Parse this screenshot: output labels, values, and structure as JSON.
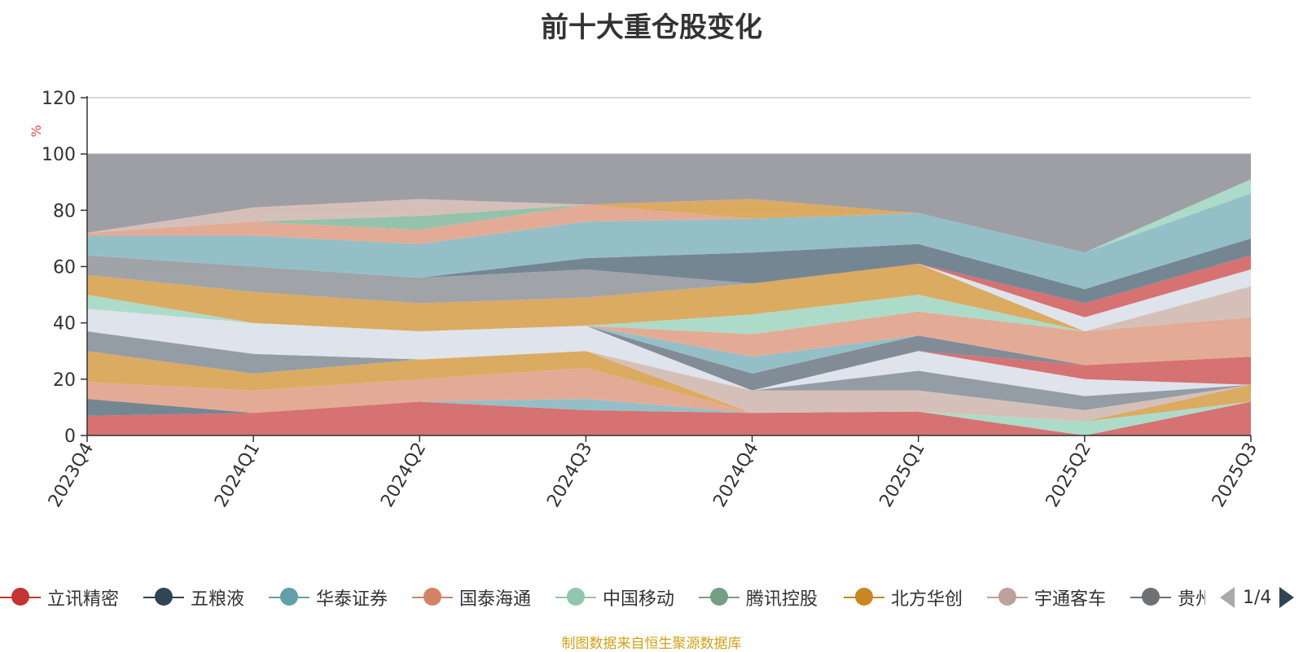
{
  "chart_data": {
    "type": "area",
    "title": "前十大重仓股变化",
    "ylabel": "%",
    "ylim": [
      0,
      120
    ],
    "yticks": [
      0,
      20,
      40,
      60,
      80,
      100,
      120
    ],
    "categories": [
      "2023Q4",
      "2024Q1",
      "2024Q2",
      "2024Q3",
      "2024Q4",
      "2025Q1",
      "2025Q2",
      "2025Q3"
    ],
    "grid": true,
    "legend_position": "bottom",
    "legend_page": "1/4",
    "source_note": "制图数据来自恒生聚源数据库",
    "bands": [
      {
        "color": "#d46a6a",
        "lower": [
          0,
          0,
          0,
          0,
          0,
          0,
          0,
          0
        ],
        "upper": [
          7,
          8,
          12,
          9,
          8,
          8.5,
          0,
          12
        ]
      },
      {
        "color": "#6e7f8d",
        "lower": [
          7,
          8,
          12,
          9,
          8,
          8.5,
          0,
          12
        ],
        "upper": [
          13,
          8,
          12,
          9,
          8,
          8.5,
          0,
          12
        ]
      },
      {
        "color": "#8fbcc4",
        "lower": [
          13,
          8,
          12,
          9,
          8,
          8.5,
          0,
          12
        ],
        "upper": [
          13,
          8,
          12,
          13,
          8,
          8.5,
          0,
          12
        ]
      },
      {
        "color": "#a9d9c6",
        "lower": [
          13,
          8,
          12,
          13,
          8,
          8.5,
          0,
          12
        ],
        "upper": [
          13,
          8,
          12,
          13,
          8,
          8.5,
          5,
          12
        ]
      },
      {
        "color": "#e2a68f",
        "lower": [
          13,
          8,
          12,
          13,
          8,
          8.5,
          5,
          12
        ],
        "upper": [
          19,
          16,
          20,
          24,
          8,
          8.5,
          5,
          12
        ]
      },
      {
        "color": "#d9a65a",
        "lower": [
          19,
          16,
          20,
          24,
          8,
          8.5,
          5,
          12
        ],
        "upper": [
          30,
          22,
          27,
          30,
          8,
          8.5,
          5,
          18
        ]
      },
      {
        "color": "#d3bdb5",
        "lower": [
          30,
          22,
          27,
          30,
          8,
          8.5,
          5,
          18
        ],
        "upper": [
          30,
          22,
          27,
          30,
          16,
          16,
          9,
          18
        ]
      },
      {
        "color": "#8e97a0",
        "lower": [
          30,
          22,
          27,
          30,
          16,
          16,
          9,
          18
        ],
        "upper": [
          37,
          29,
          27,
          30,
          16,
          23,
          14,
          18
        ]
      },
      {
        "color": "#dde2ea",
        "lower": [
          37,
          29,
          27,
          30,
          16,
          23,
          14,
          18
        ],
        "upper": [
          45,
          40,
          37,
          39,
          16,
          30,
          20,
          18
        ]
      },
      {
        "color": "#d46a6a",
        "lower": [
          45,
          40,
          37,
          39,
          16,
          30,
          20,
          18
        ],
        "upper": [
          45,
          40,
          37,
          39,
          16,
          30,
          25,
          28
        ]
      },
      {
        "color": "#7a8691",
        "lower": [
          45,
          40,
          37,
          39,
          16,
          30,
          25,
          28
        ],
        "upper": [
          45,
          40,
          37,
          39,
          22,
          35.5,
          25,
          28
        ]
      },
      {
        "color": "#8fbcc4",
        "lower": [
          45,
          40,
          37,
          39,
          22,
          35.5,
          25,
          28
        ],
        "upper": [
          45,
          40,
          37,
          39,
          28,
          35.5,
          25,
          28
        ]
      },
      {
        "color": "#e2a68f",
        "lower": [
          45,
          40,
          37,
          39,
          28,
          35.5,
          25,
          28
        ],
        "upper": [
          45,
          40,
          37,
          39,
          36,
          44,
          37,
          42
        ]
      },
      {
        "color": "#a9d9c6",
        "lower": [
          45,
          40,
          37,
          39,
          36,
          44,
          37,
          42
        ],
        "upper": [
          50,
          40,
          37,
          39,
          43,
          50,
          37,
          42
        ]
      },
      {
        "color": "#d9a65a",
        "lower": [
          50,
          40,
          37,
          39,
          43,
          50,
          37,
          42
        ],
        "upper": [
          57,
          51,
          47,
          49,
          54,
          61,
          37,
          42
        ]
      },
      {
        "color": "#d3bdb5",
        "lower": [
          57,
          51,
          47,
          49,
          54,
          61,
          37,
          42
        ],
        "upper": [
          57,
          51,
          47,
          49,
          54,
          61,
          37,
          53
        ]
      },
      {
        "color": "#9b9ea3",
        "lower": [
          57,
          51,
          47,
          49,
          54,
          61,
          37,
          53
        ],
        "upper": [
          64,
          60,
          56,
          59,
          54,
          61,
          37,
          53
        ]
      },
      {
        "color": "#dde2ea",
        "lower": [
          64,
          60,
          56,
          59,
          54,
          61,
          37,
          53
        ],
        "upper": [
          64,
          60,
          56,
          59,
          54,
          61,
          42,
          59
        ]
      },
      {
        "color": "#d46a6a",
        "lower": [
          64,
          60,
          56,
          59,
          54,
          61,
          42,
          59
        ],
        "upper": [
          64,
          60,
          56,
          59,
          54,
          61,
          47,
          64
        ]
      },
      {
        "color": "#6e7f8d",
        "lower": [
          64,
          60,
          56,
          59,
          54,
          61,
          47,
          64
        ],
        "upper": [
          64,
          60,
          56,
          63,
          65,
          68,
          52,
          70
        ]
      },
      {
        "color": "#8fbcc4",
        "lower": [
          64,
          60,
          56,
          63,
          65,
          68,
          52,
          70
        ],
        "upper": [
          71,
          71,
          68,
          76,
          77,
          79,
          65,
          86
        ]
      },
      {
        "color": "#e2a68f",
        "lower": [
          71,
          71,
          68,
          76,
          77,
          79,
          65,
          86
        ],
        "upper": [
          72,
          76,
          73,
          82,
          77,
          79,
          65,
          86
        ]
      },
      {
        "color": "#8fbfa6",
        "lower": [
          72,
          76,
          73,
          82,
          77,
          79,
          65,
          86
        ],
        "upper": [
          72,
          76,
          78,
          82,
          77,
          79,
          65,
          86
        ]
      },
      {
        "color": "#d9a65a",
        "lower": [
          72,
          76,
          78,
          82,
          77,
          79,
          65,
          86
        ],
        "upper": [
          72,
          76,
          78,
          82,
          84,
          79,
          65,
          86
        ]
      },
      {
        "color": "#d3bdb5",
        "lower": [
          72,
          76,
          78,
          82,
          84,
          79,
          65,
          86
        ],
        "upper": [
          72,
          81,
          84,
          82,
          84,
          79,
          65,
          86
        ]
      },
      {
        "color": "#a9d9c6",
        "lower": [
          72,
          81,
          84,
          82,
          84,
          79,
          65,
          86
        ],
        "upper": [
          72,
          81,
          84,
          82,
          84,
          79,
          65,
          91
        ]
      },
      {
        "color": "#999a9f",
        "lower": [
          72,
          81,
          84,
          82,
          84,
          79,
          65,
          91
        ],
        "upper": [
          100,
          100,
          100,
          100,
          100,
          100,
          100,
          100
        ]
      }
    ],
    "legend": [
      {
        "name": "立讯精密",
        "color": "#c23531"
      },
      {
        "name": "五粮液",
        "color": "#2f4554"
      },
      {
        "name": "华泰证券",
        "color": "#61a0a8"
      },
      {
        "name": "国泰海通",
        "color": "#d48265"
      },
      {
        "name": "中国移动",
        "color": "#91c7ae"
      },
      {
        "name": "腾讯控股",
        "color": "#749f83"
      },
      {
        "name": "北方华创",
        "color": "#ca8622"
      },
      {
        "name": "宇通客车",
        "color": "#bda29a"
      },
      {
        "name": "贵州茅台",
        "color": "#6e7074"
      }
    ]
  }
}
